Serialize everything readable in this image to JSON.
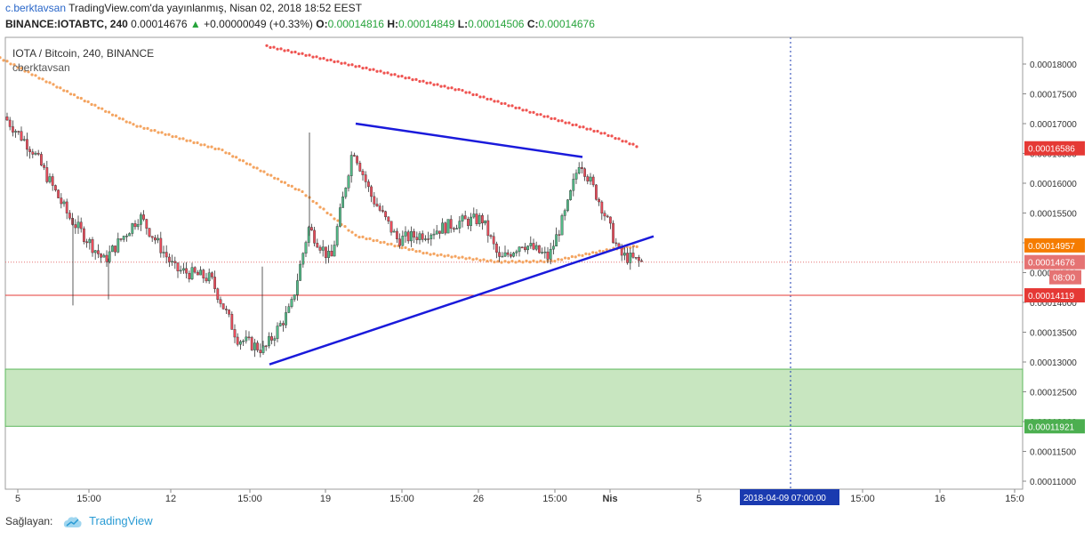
{
  "header": {
    "author": "c.berktavsan",
    "publish_line": "TradingView.com'da yayınlanmış, Nisan 02, 2018 18:52 EEST",
    "symbol_line": "BINANCE:IOTABTC, 240",
    "last": "0.00014676",
    "change_arrow": "▲",
    "change": "+0.00000049 (+0.33%)",
    "o_label": "O:",
    "o_value": "0.00014816",
    "h_label": "H:",
    "h_value": "0.00014849",
    "l_label": "L:",
    "l_value": "0.00014506",
    "c_label": "C:",
    "c_value": "0.00014676"
  },
  "legend": {
    "title": "IOTA / Bitcoin, 240, BINANCE",
    "author": "cberktavsan"
  },
  "footer": {
    "provided_by": "Sağlayan:",
    "brand": "TradingView"
  },
  "chart_data": {
    "type": "candlestick",
    "ylim": [
      0.000108,
      0.000182
    ],
    "y_ticks": [
      "0.00018000",
      "0.00017500",
      "0.00017000",
      "0.00016500",
      "0.00016000",
      "0.00015500",
      "0.00015000",
      "0.00014500",
      "0.00014000",
      "0.00013500",
      "0.00013000",
      "0.00012500",
      "0.00012000",
      "0.00011500",
      "0.00011000"
    ],
    "x_ticks": [
      "5",
      "15:00",
      "12",
      "15:00",
      "19",
      "15:00",
      "26",
      "15:00",
      "Nis",
      "5",
      "2018-04-09 07:00:00",
      "15:00",
      "16",
      "15:0"
    ],
    "crosshair_time": "2018-04-09 07:00:00",
    "price_labels": [
      {
        "value": "0.00016586",
        "color": "#e53935"
      },
      {
        "value": "0.00014957",
        "color": "#f57c00"
      },
      {
        "value": "0.00014676",
        "color": "#e57373"
      },
      {
        "value": "08:00",
        "color": "#e57373"
      },
      {
        "value": "0.00014119",
        "color": "#e53935"
      },
      {
        "value": "0.00011921",
        "color": "#4caf50"
      }
    ],
    "horizontal_line": 0.00014119,
    "support_zone": [
      0.00011921,
      0.0001288
    ],
    "moving_averages": [
      {
        "color": "#f4a460",
        "points": [
          [
            0,
            0.000181
          ],
          [
            60,
            0.0001765
          ],
          [
            150,
            0.0001698
          ],
          [
            250,
            0.0001655
          ],
          [
            340,
            0.0001585
          ],
          [
            400,
            0.0001512
          ],
          [
            480,
            0.0001482
          ],
          [
            560,
            0.0001468
          ],
          [
            620,
            0.0001469
          ],
          [
            690,
            0.000149
          ],
          [
            720,
            0.0001495
          ]
        ]
      },
      {
        "color": "#ef5350",
        "points": [
          [
            300,
            0.000183
          ],
          [
            420,
            0.000179
          ],
          [
            520,
            0.0001755
          ],
          [
            600,
            0.0001718
          ],
          [
            680,
            0.0001683
          ],
          [
            720,
            0.000166
          ]
        ]
      }
    ],
    "triangle": {
      "color": "#1a1adb",
      "upper": [
        [
          400,
          0.00017
        ],
        [
          655,
          0.0001644
        ]
      ],
      "lower": [
        [
          303,
          0.0001296
        ],
        [
          735,
          0.0001511
        ]
      ]
    },
    "candles": []
  }
}
